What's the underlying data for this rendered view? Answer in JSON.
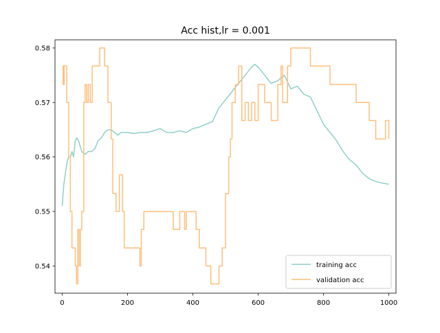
{
  "chart_data": {
    "type": "line",
    "title": "Acc hist,lr = 0.001",
    "xlabel": "",
    "ylabel": "",
    "xlim": [
      -22,
      1022
    ],
    "ylim": [
      0.535,
      0.5815
    ],
    "xticks": [
      0,
      200,
      400,
      600,
      800,
      1000
    ],
    "yticks": [
      0.54,
      0.55,
      0.56,
      0.57,
      0.58
    ],
    "xtick_labels": [
      "0",
      "200",
      "400",
      "600",
      "800",
      "1000"
    ],
    "ytick_labels": [
      "0.54",
      "0.55",
      "0.56",
      "0.57",
      "0.58"
    ],
    "grid": false,
    "legend_position": "lower-right",
    "series": [
      {
        "name": "training acc",
        "color": "#8ecfc9",
        "step": false,
        "x": [
          0,
          5,
          10,
          15,
          20,
          25,
          30,
          35,
          40,
          45,
          50,
          60,
          70,
          80,
          90,
          100,
          110,
          120,
          130,
          140,
          150,
          160,
          170,
          180,
          190,
          200,
          220,
          240,
          260,
          280,
          300,
          320,
          340,
          360,
          380,
          400,
          420,
          440,
          460,
          480,
          500,
          520,
          540,
          560,
          580,
          590,
          600,
          620,
          640,
          660,
          680,
          700,
          720,
          740,
          760,
          780,
          800,
          820,
          840,
          860,
          880,
          900,
          920,
          940,
          960,
          980,
          1000
        ],
        "y": [
          0.551,
          0.555,
          0.557,
          0.559,
          0.56,
          0.56,
          0.561,
          0.56,
          0.563,
          0.5635,
          0.563,
          0.561,
          0.5605,
          0.561,
          0.561,
          0.5615,
          0.563,
          0.5635,
          0.5645,
          0.565,
          0.565,
          0.5645,
          0.564,
          0.5645,
          0.5645,
          0.5645,
          0.5643,
          0.5645,
          0.5645,
          0.5648,
          0.5652,
          0.5645,
          0.5645,
          0.5648,
          0.5645,
          0.5652,
          0.5655,
          0.566,
          0.5665,
          0.569,
          0.5705,
          0.572,
          0.5735,
          0.575,
          0.5765,
          0.577,
          0.5765,
          0.575,
          0.5735,
          0.574,
          0.575,
          0.5725,
          0.573,
          0.5715,
          0.571,
          0.5685,
          0.566,
          0.5645,
          0.563,
          0.561,
          0.5595,
          0.5585,
          0.557,
          0.556,
          0.5555,
          0.5552,
          0.555
        ]
      },
      {
        "name": "validation acc",
        "color": "#ffbe7a",
        "step": true,
        "x": [
          0,
          3,
          6,
          10,
          14,
          20,
          25,
          30,
          35,
          40,
          44,
          48,
          52,
          56,
          60,
          66,
          70,
          75,
          80,
          86,
          92,
          96,
          105,
          115,
          125,
          130,
          140,
          150,
          155,
          165,
          175,
          185,
          190,
          200,
          210,
          220,
          230,
          238,
          242,
          250,
          265,
          280,
          300,
          320,
          340,
          360,
          375,
          380,
          400,
          410,
          420,
          440,
          455,
          470,
          480,
          490,
          500,
          510,
          515,
          520,
          530,
          540,
          550,
          560,
          570,
          580,
          590,
          600,
          620,
          640,
          660,
          670,
          675,
          690,
          700,
          720,
          740,
          760,
          780,
          800,
          820,
          840,
          860,
          880,
          900,
          920,
          940,
          960,
          980,
          990,
          1000
        ],
        "y": [
          0.5767,
          0.5733,
          0.5767,
          0.5767,
          0.57,
          0.56,
          0.55,
          0.5433,
          0.5433,
          0.54,
          0.5367,
          0.5467,
          0.54,
          0.5467,
          0.55,
          0.57,
          0.5733,
          0.57,
          0.5733,
          0.57,
          0.5767,
          0.5767,
          0.5767,
          0.58,
          0.58,
          0.5767,
          0.57,
          0.5633,
          0.5533,
          0.55,
          0.5567,
          0.55,
          0.5433,
          0.5433,
          0.5433,
          0.5433,
          0.5433,
          0.54,
          0.5467,
          0.55,
          0.55,
          0.55,
          0.55,
          0.55,
          0.5467,
          0.55,
          0.5467,
          0.55,
          0.55,
          0.5467,
          0.5433,
          0.54,
          0.5367,
          0.5367,
          0.54,
          0.5433,
          0.5533,
          0.56,
          0.5633,
          0.57,
          0.5733,
          0.5767,
          0.5667,
          0.57,
          0.5667,
          0.57,
          0.5667,
          0.5733,
          0.57,
          0.5667,
          0.5733,
          0.5767,
          0.57,
          0.5767,
          0.58,
          0.58,
          0.58,
          0.5767,
          0.5767,
          0.5767,
          0.5733,
          0.5733,
          0.5733,
          0.5733,
          0.57,
          0.57,
          0.5667,
          0.5633,
          0.5633,
          0.5667,
          0.5633
        ]
      }
    ]
  }
}
